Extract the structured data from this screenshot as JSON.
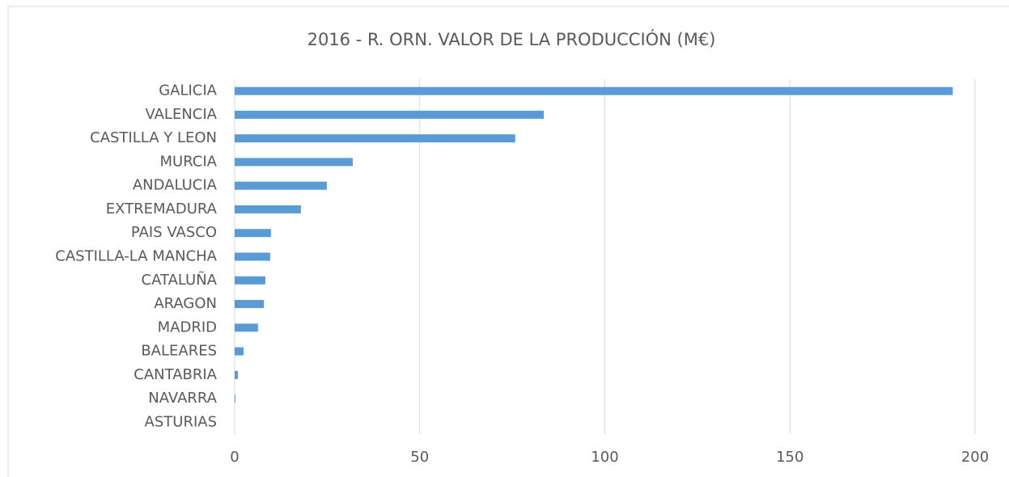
{
  "chart_data": {
    "type": "bar",
    "orientation": "horizontal",
    "title": "2016 - R. ORN. VALOR DE LA PRODUCCIÓN (M€)",
    "categories": [
      "GALICIA",
      "VALENCIA",
      "CASTILLA Y LEON",
      "MURCIA",
      "ANDALUCIA",
      "EXTREMADURA",
      "PAIS VASCO",
      "CASTILLA-LA MANCHA",
      "CATALUÑA",
      "ARAGON",
      "MADRID",
      "BALEARES",
      "CANTABRIA",
      "NAVARRA",
      "ASTURIAS"
    ],
    "values": [
      194,
      83.5,
      75.8,
      31.9,
      24.9,
      17.9,
      9.8,
      9.6,
      8.3,
      7.9,
      6.3,
      2.4,
      0.9,
      0.2,
      0
    ],
    "color": "#5b9bd5",
    "xlim": [
      0,
      200
    ],
    "xticks": [
      0,
      50,
      100,
      150,
      200
    ],
    "grid": true
  }
}
